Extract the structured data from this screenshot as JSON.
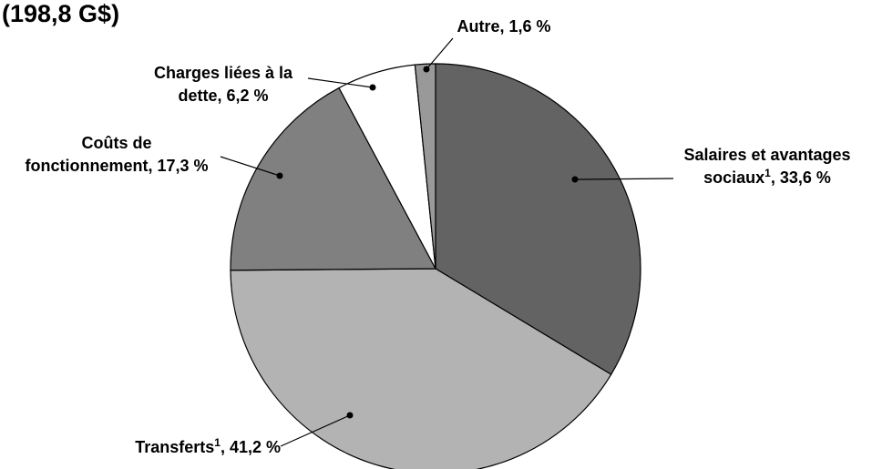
{
  "chart_data": {
    "type": "pie",
    "title": "(198,8 G$)",
    "slices": [
      {
        "label_lines": [
          "Salaires et avantages",
          "sociaux"
        ],
        "sup": "1",
        "value_text": ", 33,6 %",
        "value": 33.6,
        "color": "#636363"
      },
      {
        "label_lines": [
          "Transferts"
        ],
        "sup": "1",
        "value_text": ", 41,2 %",
        "value": 41.2,
        "color": "#b3b3b3"
      },
      {
        "label_lines": [
          "Coûts de",
          "fonctionnement, 17,3 %"
        ],
        "sup": "",
        "value_text": "",
        "value": 17.3,
        "color": "#808080"
      },
      {
        "label_lines": [
          "Charges liées à la",
          "dette, 6,2 %"
        ],
        "sup": "",
        "value_text": "",
        "value": 6.2,
        "color": "#ffffff"
      },
      {
        "label_lines": [
          "Autre, 1,6 %"
        ],
        "sup": "",
        "value_text": "",
        "value": 1.6,
        "color": "#999999"
      }
    ]
  }
}
